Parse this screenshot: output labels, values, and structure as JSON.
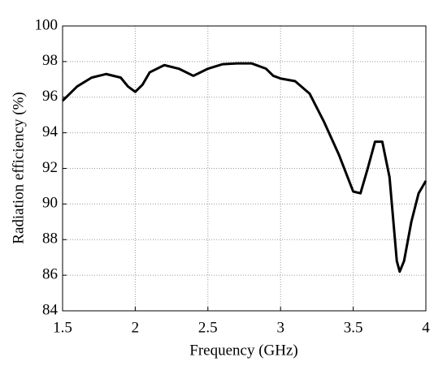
{
  "chart_data": {
    "type": "line",
    "xlabel": "Frequency (GHz)",
    "ylabel": "Radiation efficiency (%)",
    "x": [
      1.5,
      1.6,
      1.7,
      1.8,
      1.9,
      1.95,
      2.0,
      2.05,
      2.1,
      2.2,
      2.3,
      2.4,
      2.5,
      2.6,
      2.7,
      2.8,
      2.9,
      2.95,
      3.0,
      3.1,
      3.2,
      3.3,
      3.4,
      3.5,
      3.55,
      3.6,
      3.65,
      3.7,
      3.75,
      3.8,
      3.82,
      3.85,
      3.9,
      3.95,
      4.0
    ],
    "series": [
      {
        "color": "#000000",
        "values": [
          95.8,
          96.6,
          97.1,
          97.3,
          97.1,
          96.6,
          96.3,
          96.7,
          97.4,
          97.8,
          97.6,
          97.2,
          97.6,
          97.85,
          97.9,
          97.9,
          97.6,
          97.2,
          97.05,
          96.9,
          96.2,
          94.6,
          92.8,
          90.7,
          90.6,
          92.0,
          93.5,
          93.5,
          91.5,
          86.8,
          86.2,
          86.8,
          89.0,
          90.6,
          91.3
        ]
      }
    ],
    "xlim": [
      1.5,
      4
    ],
    "xticks": [
      1.5,
      2,
      2.5,
      3,
      3.5,
      4
    ],
    "ylim": [
      84,
      100
    ],
    "yticks": [
      84,
      86,
      88,
      90,
      92,
      94,
      96,
      98,
      100
    ],
    "grid": true
  }
}
